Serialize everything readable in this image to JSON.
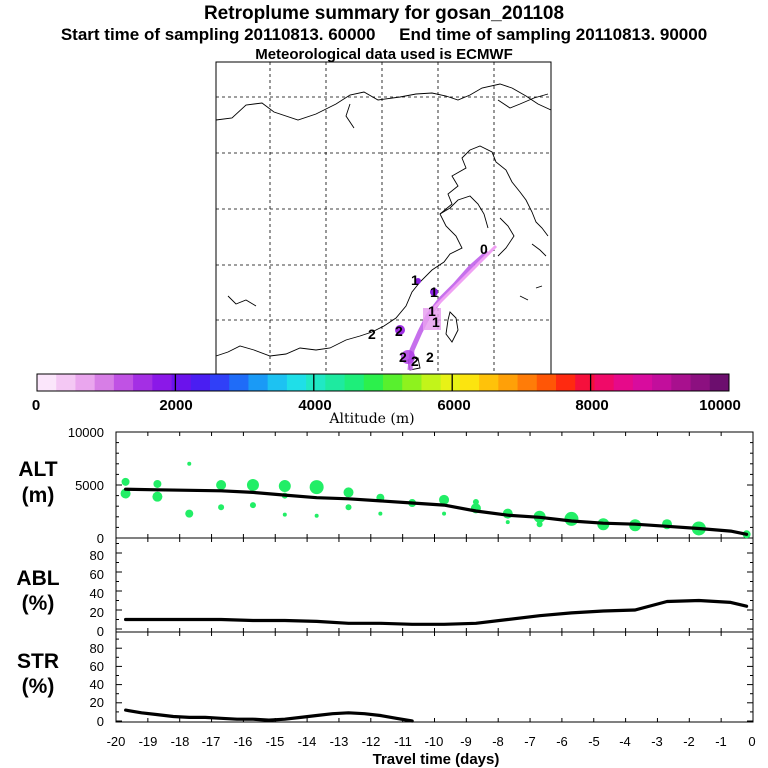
{
  "header": {
    "title": "Retroplume summary for gosan_201108",
    "start_label": "Start time of sampling 20110813. 60000",
    "end_label": "End time of sampling 20110813. 90000",
    "met_label": "Meteorological data used is ECMWF"
  },
  "colorbar": {
    "title": "Altitude (m)",
    "tick_labels": [
      "0",
      "2000",
      "4000",
      "6000",
      "8000",
      "10000"
    ],
    "range": [
      0,
      10000
    ],
    "colors": [
      "#fbe6fb",
      "#f4c8f4",
      "#eaa6ee",
      "#d77ee6",
      "#c052e4",
      "#a42fe4",
      "#8b18e8",
      "#6b12ec",
      "#4a1ef2",
      "#3040f8",
      "#1f6cf8",
      "#1a9af6",
      "#1dc2f2",
      "#1fdfe8",
      "#20e8c4",
      "#1eeaa0",
      "#1eee7a",
      "#2cf04c",
      "#58f02e",
      "#8ef21e",
      "#c2f41a",
      "#e8f216",
      "#fce40f",
      "#ffc20a",
      "#ffa008",
      "#ff7c08",
      "#ff5606",
      "#ff2a10",
      "#f5103c",
      "#f00a68",
      "#e60a8a",
      "#d80c9e",
      "#c20e9c",
      "#a8108e",
      "#8c1080",
      "#6c0e6e"
    ]
  },
  "map": {
    "plume_labels": [
      "0",
      "1",
      "1",
      "1",
      "1",
      "2",
      "2",
      "2",
      "2",
      "2"
    ]
  },
  "chart_data": [
    {
      "type": "line+scatter",
      "name": "ALT",
      "ylabel": "ALT\n(m)",
      "ylabel_lines": [
        "ALT",
        "(m)"
      ],
      "ytick_labels": [
        "10000",
        "5000",
        "0"
      ],
      "ylim": [
        0,
        10000
      ],
      "x": [
        -19.7,
        -18.7,
        -17.7,
        -16.7,
        -15.7,
        -14.7,
        -13.7,
        -12.7,
        -11.7,
        -10.7,
        -9.7,
        -8.7,
        -7.7,
        -6.7,
        -5.7,
        -4.7,
        -3.7,
        -2.7,
        -1.7,
        -0.7,
        -0.2
      ],
      "y": [
        4600,
        4550,
        4500,
        4450,
        4300,
        4050,
        3800,
        3700,
        3500,
        3300,
        3100,
        2550,
        2150,
        1950,
        1600,
        1400,
        1300,
        1100,
        900,
        650,
        350
      ],
      "scatter_color": "#22ee66",
      "scatter": [
        {
          "x": -19.7,
          "y": 5300,
          "s": 4
        },
        {
          "x": -19.7,
          "y": 4200,
          "s": 5
        },
        {
          "x": -18.7,
          "y": 5100,
          "s": 4
        },
        {
          "x": -18.7,
          "y": 3900,
          "s": 5
        },
        {
          "x": -17.7,
          "y": 7000,
          "s": 2
        },
        {
          "x": -17.7,
          "y": 2300,
          "s": 4
        },
        {
          "x": -16.7,
          "y": 5000,
          "s": 5
        },
        {
          "x": -16.7,
          "y": 2900,
          "s": 3
        },
        {
          "x": -15.7,
          "y": 5000,
          "s": 6
        },
        {
          "x": -15.7,
          "y": 3100,
          "s": 3
        },
        {
          "x": -14.7,
          "y": 4900,
          "s": 6
        },
        {
          "x": -14.7,
          "y": 4000,
          "s": 3
        },
        {
          "x": -14.7,
          "y": 2200,
          "s": 2
        },
        {
          "x": -13.7,
          "y": 4800,
          "s": 7
        },
        {
          "x": -13.7,
          "y": 2100,
          "s": 2
        },
        {
          "x": -12.7,
          "y": 4300,
          "s": 5
        },
        {
          "x": -12.7,
          "y": 2900,
          "s": 3
        },
        {
          "x": -11.7,
          "y": 3800,
          "s": 4
        },
        {
          "x": -11.7,
          "y": 2300,
          "s": 2
        },
        {
          "x": -10.7,
          "y": 3300,
          "s": 4
        },
        {
          "x": -9.7,
          "y": 3600,
          "s": 5
        },
        {
          "x": -9.7,
          "y": 2300,
          "s": 2
        },
        {
          "x": -8.7,
          "y": 3400,
          "s": 3
        },
        {
          "x": -8.7,
          "y": 2800,
          "s": 5
        },
        {
          "x": -7.7,
          "y": 2300,
          "s": 5
        },
        {
          "x": -7.7,
          "y": 1500,
          "s": 2
        },
        {
          "x": -6.7,
          "y": 2000,
          "s": 6
        },
        {
          "x": -6.7,
          "y": 1300,
          "s": 3
        },
        {
          "x": -5.7,
          "y": 1800,
          "s": 7
        },
        {
          "x": -4.7,
          "y": 1300,
          "s": 6
        },
        {
          "x": -3.7,
          "y": 1200,
          "s": 6
        },
        {
          "x": -2.7,
          "y": 1300,
          "s": 5
        },
        {
          "x": -1.7,
          "y": 900,
          "s": 7
        },
        {
          "x": -0.2,
          "y": 350,
          "s": 4
        }
      ]
    },
    {
      "type": "line",
      "name": "ABL",
      "ylabel": "ABL\n(%)",
      "ylabel_lines": [
        "ABL",
        "(%)"
      ],
      "ytick_labels": [
        "80",
        "60",
        "40",
        "20",
        "0"
      ],
      "ylim": [
        0,
        100
      ],
      "x": [
        -19.7,
        -18.7,
        -17.7,
        -16.7,
        -15.7,
        -14.7,
        -13.7,
        -12.7,
        -11.7,
        -10.7,
        -9.7,
        -8.7,
        -7.7,
        -6.7,
        -5.7,
        -4.7,
        -3.7,
        -2.7,
        -1.7,
        -0.7,
        -0.2
      ],
      "y": [
        10,
        10,
        10,
        10,
        9,
        9,
        8,
        6,
        6,
        5,
        5,
        6,
        10,
        14,
        17,
        19,
        20,
        29,
        30,
        28,
        24
      ]
    },
    {
      "type": "line",
      "name": "STR",
      "ylabel": "STR\n(%)",
      "ylabel_lines": [
        "STR",
        "(%)"
      ],
      "ytick_labels": [
        "80",
        "60",
        "40",
        "20",
        "0"
      ],
      "ylim": [
        0,
        100
      ],
      "x": [
        -19.7,
        -19.2,
        -18.7,
        -18.2,
        -17.7,
        -17.2,
        -16.7,
        -16.2,
        -15.7,
        -15.2,
        -14.7,
        -14.2,
        -13.7,
        -13.2,
        -12.7,
        -12.2,
        -11.7,
        -11.2,
        -10.7
      ],
      "y": [
        12,
        9,
        7,
        5,
        4,
        4,
        3,
        2,
        2,
        1,
        2,
        4,
        6,
        8,
        9,
        8,
        6,
        3,
        0
      ]
    }
  ],
  "xaxis": {
    "tick_labels": [
      "-20",
      "-19",
      "-18",
      "-17",
      "-16",
      "-15",
      "-14",
      "-13",
      "-12",
      "-11",
      "-10",
      "-9",
      "-8",
      "-7",
      "-6",
      "-5",
      "-4",
      "-3",
      "-2",
      "-1",
      "0"
    ],
    "range": [
      -20,
      0
    ],
    "label": "Travel time (days)"
  }
}
